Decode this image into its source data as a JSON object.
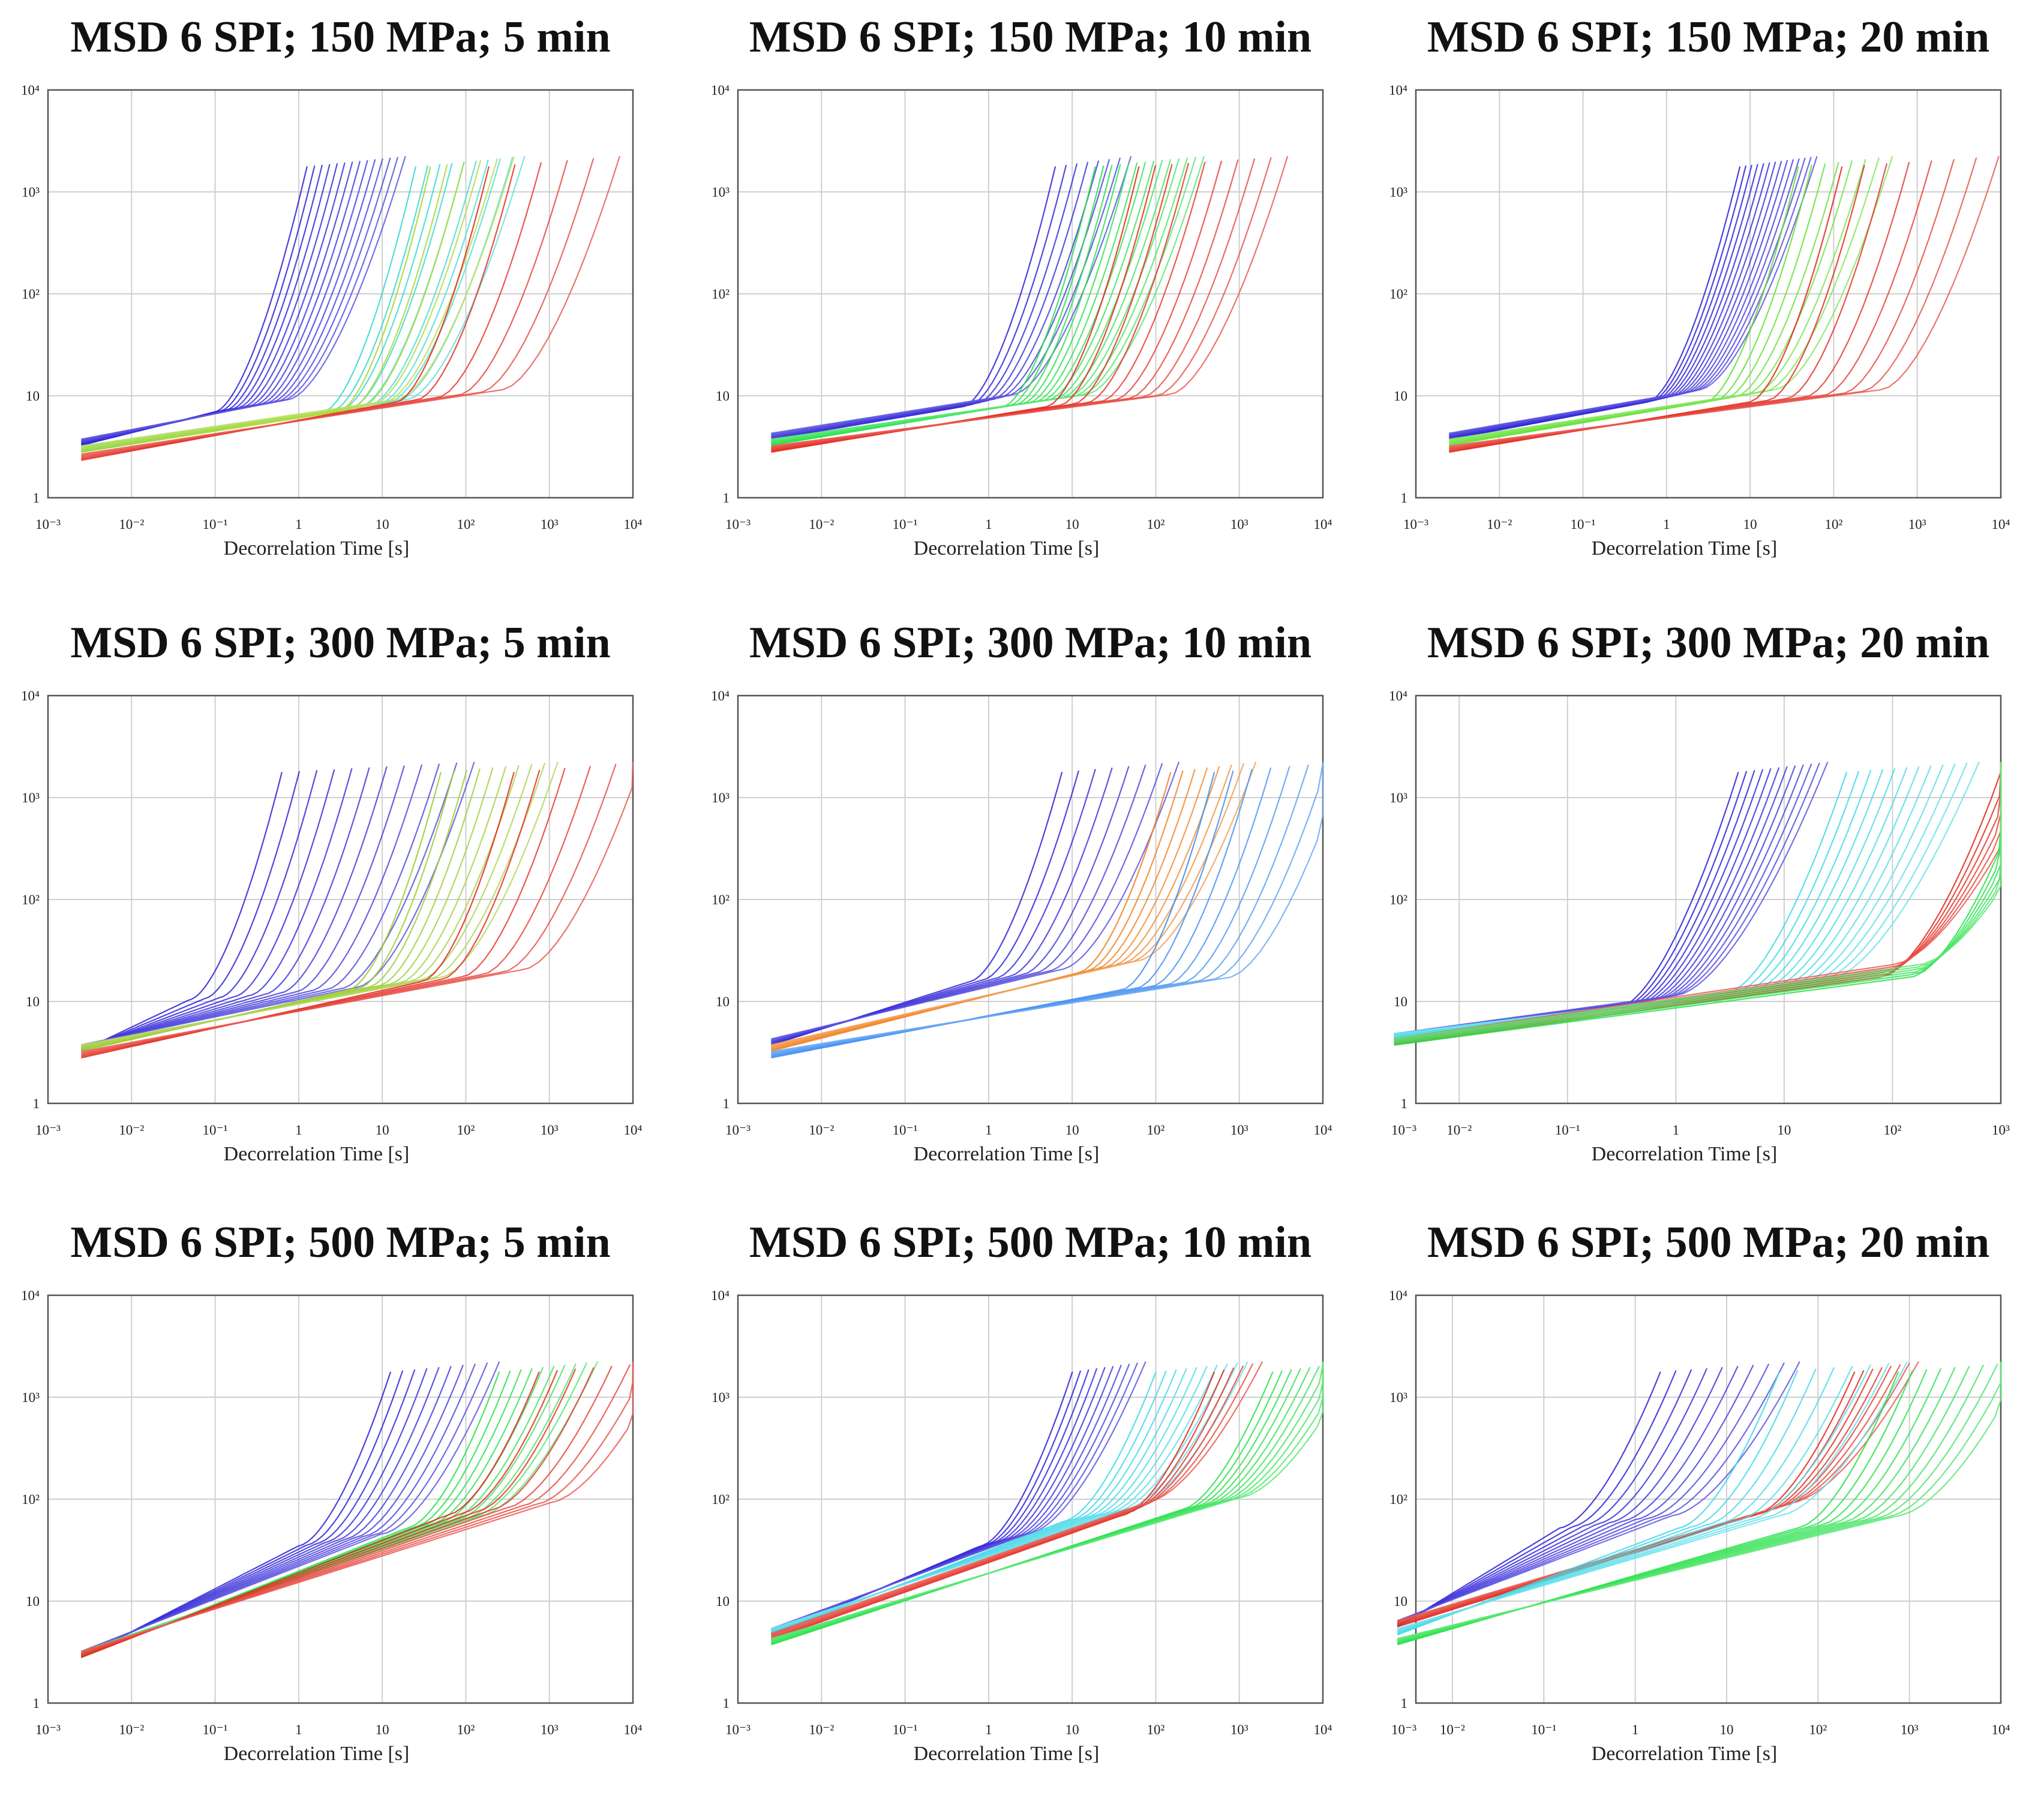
{
  "figure": {
    "xlabel": "Decorrelation Time [s]",
    "y_ticks": [
      "1",
      "10",
      "10²",
      "10³",
      "10⁴"
    ],
    "palette": [
      "#2a1fd6",
      "#3c6cf0",
      "#3ed8e6",
      "#27e04a",
      "#9acb2e",
      "#f0a020",
      "#e2261b"
    ]
  },
  "chart_data": [
    {
      "type": "line",
      "title": "MSD 6 SPI; 150 MPa; 5 min",
      "xlabel": "Decorrelation Time [s]",
      "xscale": "log",
      "yscale": "log",
      "x_decades": [
        -3,
        4
      ],
      "y_decades": [
        0,
        4
      ],
      "x_ticks": [
        "10⁻³",
        "10⁻²",
        "10⁻¹",
        "1",
        "10",
        "10²",
        "10³",
        "10⁴"
      ],
      "series": [
        {
          "name": "blue",
          "color": "#2a1fd6",
          "y_start": 3.5,
          "y_plateau": 8,
          "t_rise": 0.1,
          "t_end": 3,
          "count": 14
        },
        {
          "name": "cyan",
          "color": "#2fd8d0",
          "y_start": 3.0,
          "y_plateau": 8,
          "t_rise": 2,
          "t_end": 80,
          "count": 10
        },
        {
          "name": "green",
          "color": "#a7d62a",
          "y_start": 3.0,
          "y_plateau": 8,
          "t_rise": 3,
          "t_end": 60,
          "count": 6
        },
        {
          "name": "red",
          "color": "#e2261b",
          "y_start": 2.5,
          "y_plateau": 10,
          "t_rise": 15,
          "t_end": 1100,
          "count": 6
        }
      ]
    },
    {
      "type": "line",
      "title": "MSD 6 SPI; 150 MPa; 10 min",
      "xlabel": "Decorrelation Time [s]",
      "xscale": "log",
      "yscale": "log",
      "x_decades": [
        -3,
        4
      ],
      "y_decades": [
        0,
        4
      ],
      "x_ticks": [
        "10⁻³",
        "10⁻²",
        "10⁻¹",
        "1",
        "10",
        "10²",
        "10³",
        "10⁴"
      ],
      "series": [
        {
          "name": "blue",
          "color": "#2a1fd6",
          "y_start": 4.0,
          "y_plateau": 9,
          "t_rise": 0.5,
          "t_end": 8,
          "count": 8
        },
        {
          "name": "green",
          "color": "#27e04a",
          "y_start": 3.5,
          "y_plateau": 9,
          "t_rise": 1.5,
          "t_end": 60,
          "count": 14
        },
        {
          "name": "red",
          "color": "#e2261b",
          "y_start": 3.0,
          "y_plateau": 9,
          "t_rise": 5,
          "t_end": 600,
          "count": 10
        }
      ]
    },
    {
      "type": "line",
      "title": "MSD 6 SPI; 150 MPa; 20 min",
      "xlabel": "Decorrelation Time [s]",
      "xscale": "log",
      "yscale": "log",
      "x_decades": [
        -3,
        4
      ],
      "y_decades": [
        0,
        4
      ],
      "x_ticks": [
        "10⁻³",
        "10⁻²",
        "10⁻¹",
        "1",
        "10",
        "10²",
        "10³",
        "10⁴"
      ],
      "series": [
        {
          "name": "blue",
          "color": "#2a1fd6",
          "y_start": 4.0,
          "y_plateau": 10,
          "t_rise": 0.6,
          "t_end": 10,
          "count": 14
        },
        {
          "name": "green",
          "color": "#5fe02e",
          "y_start": 3.5,
          "y_plateau": 10,
          "t_rise": 3,
          "t_end": 80,
          "count": 8
        },
        {
          "name": "red",
          "color": "#e2261b",
          "y_start": 3.0,
          "y_plateau": 10,
          "t_rise": 10,
          "t_end": 1500,
          "count": 8
        }
      ]
    },
    {
      "type": "line",
      "title": "MSD 6 SPI; 300 MPa; 5 min",
      "xlabel": "Decorrelation Time [s]",
      "xscale": "log",
      "yscale": "log",
      "x_decades": [
        -3,
        4
      ],
      "y_decades": [
        0,
        4
      ],
      "x_ticks": [
        "10⁻³",
        "10⁻²",
        "10⁻¹",
        "1",
        "10",
        "10²",
        "10³",
        "10⁴"
      ],
      "series": [
        {
          "name": "blue",
          "color": "#2a1fd6",
          "y_start": 3.5,
          "y_plateau": 12,
          "t_rise": 0.05,
          "t_end": 20,
          "count": 12
        },
        {
          "name": "green",
          "color": "#9acb2e",
          "y_start": 3.5,
          "y_plateau": 15,
          "t_rise": 4,
          "t_end": 200,
          "count": 10
        },
        {
          "name": "red",
          "color": "#e2261b",
          "y_start": 3.0,
          "y_plateau": 18,
          "t_rise": 30,
          "t_end": 2000,
          "count": 6
        }
      ]
    },
    {
      "type": "line",
      "title": "MSD 6 SPI; 300 MPa; 10 min",
      "xlabel": "Decorrelation Time [s]",
      "xscale": "log",
      "yscale": "log",
      "x_decades": [
        -3,
        4
      ],
      "y_decades": [
        0,
        4
      ],
      "x_ticks": [
        "10⁻³",
        "10⁻²",
        "10⁻¹",
        "1",
        "10",
        "10²",
        "10³",
        "10⁴"
      ],
      "series": [
        {
          "name": "blue",
          "color": "#2a1fd6",
          "y_start": 4.0,
          "y_plateau": 18,
          "t_rise": 0.6,
          "t_end": 30,
          "count": 8
        },
        {
          "name": "orange",
          "color": "#f08020",
          "y_start": 3.5,
          "y_plateau": 22,
          "t_rise": 12,
          "t_end": 250,
          "count": 8
        },
        {
          "name": "lightblue",
          "color": "#3c8cf0",
          "y_start": 3.0,
          "y_plateau": 15,
          "t_rise": 40,
          "t_end": 3000,
          "count": 8
        }
      ]
    },
    {
      "type": "line",
      "title": "MSD 6 SPI; 300 MPa; 20 min",
      "xlabel": "Decorrelation Time [s]",
      "xscale": "log",
      "yscale": "log",
      "x_decades": [
        -2.4,
        3
      ],
      "y_decades": [
        0,
        4
      ],
      "x_ticks": [
        "10⁻³",
        "10⁻²",
        "10⁻¹",
        "1",
        "10",
        "10²",
        "10³"
      ],
      "series": [
        {
          "name": "blue",
          "color": "#2a1fd6",
          "y_start": 4.5,
          "y_plateau": 10,
          "t_rise": 0.3,
          "t_end": 4,
          "count": 12
        },
        {
          "name": "cyan",
          "color": "#3ed8e6",
          "y_start": 4.5,
          "y_plateau": 14,
          "t_rise": 3,
          "t_end": 100,
          "count": 12
        },
        {
          "name": "red",
          "color": "#e2261b",
          "y_start": 4.0,
          "y_plateau": 20,
          "t_rise": 80,
          "t_end": 400,
          "count": 6
        },
        {
          "name": "green",
          "color": "#27e04a",
          "y_start": 4.0,
          "y_plateau": 20,
          "t_rise": 150,
          "t_end": 700,
          "count": 6
        }
      ]
    },
    {
      "type": "line",
      "title": "MSD 6 SPI; 500 MPa; 5 min",
      "xlabel": "Decorrelation Time [s]",
      "xscale": "log",
      "yscale": "log",
      "x_decades": [
        -3,
        4
      ],
      "y_decades": [
        0,
        4
      ],
      "x_ticks": [
        "10⁻³",
        "10⁻²",
        "10⁻¹",
        "1",
        "10",
        "10²",
        "10³",
        "10⁴"
      ],
      "series": [
        {
          "name": "blue",
          "color": "#2a1fd6",
          "y_start": 3.0,
          "y_plateau": 40,
          "t_rise": 1,
          "t_end": 40,
          "count": 10
        },
        {
          "name": "green",
          "color": "#27e04a",
          "y_start": 3.0,
          "y_plateau": 60,
          "t_rise": 20,
          "t_end": 600,
          "count": 10
        },
        {
          "name": "red",
          "color": "#e2261b",
          "y_start": 3.0,
          "y_plateau": 80,
          "t_rise": 60,
          "t_end": 4000,
          "count": 8
        }
      ]
    },
    {
      "type": "line",
      "title": "MSD 6 SPI; 500 MPa; 10 min",
      "xlabel": "Decorrelation Time [s]",
      "xscale": "log",
      "yscale": "log",
      "x_decades": [
        -3,
        4
      ],
      "y_decades": [
        0,
        4
      ],
      "x_ticks": [
        "10⁻³",
        "10⁻²",
        "10⁻¹",
        "1",
        "10",
        "10²",
        "10³",
        "10⁴"
      ],
      "series": [
        {
          "name": "blue",
          "color": "#2a1fd6",
          "y_start": 5.0,
          "y_plateau": 40,
          "t_rise": 0.8,
          "t_end": 12,
          "count": 10
        },
        {
          "name": "cyan",
          "color": "#3ed8e6",
          "y_start": 5.0,
          "y_plateau": 70,
          "t_rise": 8,
          "t_end": 200,
          "count": 10
        },
        {
          "name": "red",
          "color": "#e2261b",
          "y_start": 4.5,
          "y_plateau": 80,
          "t_rise": 40,
          "t_end": 300,
          "count": 6
        },
        {
          "name": "green",
          "color": "#27e04a",
          "y_start": 4.0,
          "y_plateau": 90,
          "t_rise": 200,
          "t_end": 4000,
          "count": 10
        }
      ]
    },
    {
      "type": "line",
      "title": "MSD 6 SPI; 500 MPa; 20 min",
      "xlabel": "Decorrelation Time [s]",
      "xscale": "log",
      "yscale": "log",
      "x_decades": [
        -2.4,
        4
      ],
      "y_decades": [
        0,
        4
      ],
      "x_ticks": [
        "10⁻³",
        "10⁻²",
        "10⁻¹",
        "1",
        "10",
        "10²",
        "10³",
        "10⁴"
      ],
      "series": [
        {
          "name": "blue",
          "color": "#2a1fd6",
          "y_start": 6.0,
          "y_plateau": 60,
          "t_rise": 0.15,
          "t_end": 10,
          "count": 10
        },
        {
          "name": "red",
          "color": "#e2261b",
          "y_start": 6.0,
          "y_plateau": 80,
          "t_rise": 20,
          "t_end": 200,
          "count": 8
        },
        {
          "name": "cyan",
          "color": "#3ed8e6",
          "y_start": 5.0,
          "y_plateau": 60,
          "t_rise": 3,
          "t_end": 150,
          "count": 8
        },
        {
          "name": "green",
          "color": "#27e04a",
          "y_start": 4.0,
          "y_plateau": 60,
          "t_rise": 60,
          "t_end": 3000,
          "count": 10
        }
      ]
    }
  ]
}
